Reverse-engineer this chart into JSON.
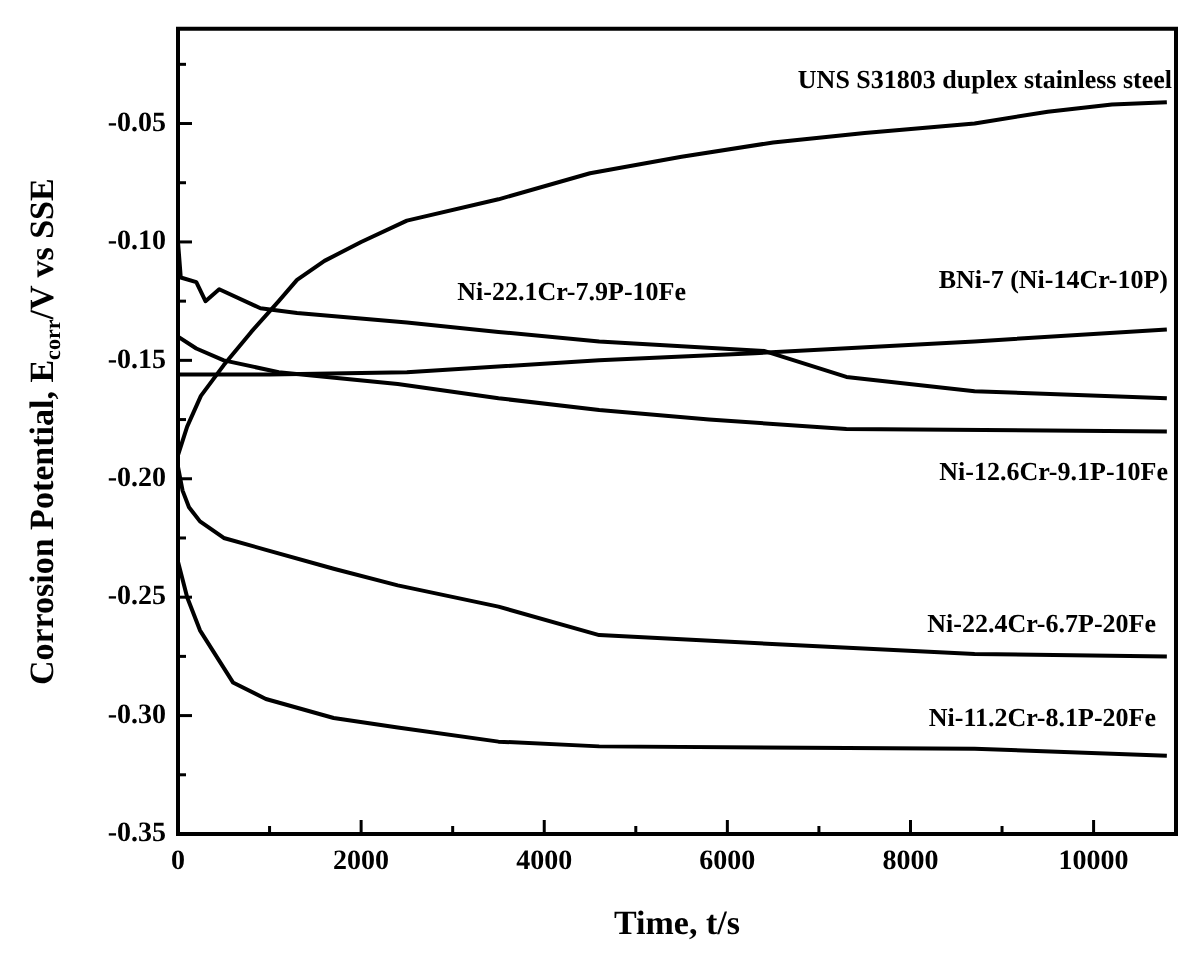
{
  "chart_data": {
    "type": "line",
    "xlabel": "Time, t/s",
    "ylabel": "Corrosion Potential, E$_{corr}$/V vs SSE",
    "xlim": [
      0,
      10900
    ],
    "ylim": [
      -0.35,
      -0.01
    ],
    "xticks": [
      0,
      {
        "value": 1000,
        "label": null
      },
      2000,
      {
        "value": 3000,
        "label": null
      },
      4000,
      {
        "value": 5000,
        "label": null
      },
      6000,
      {
        "value": 7000,
        "label": null
      },
      8000,
      {
        "value": 9000,
        "label": null
      },
      10000
    ],
    "yticks": [
      {
        "value": -0.35,
        "label": "-0.35"
      },
      {
        "value": -0.325,
        "label": null
      },
      {
        "value": -0.3,
        "label": "-0.30"
      },
      {
        "value": -0.275,
        "label": null
      },
      {
        "value": -0.25,
        "label": "-0.25"
      },
      {
        "value": -0.225,
        "label": null
      },
      {
        "value": -0.2,
        "label": "-0.20"
      },
      {
        "value": -0.175,
        "label": null
      },
      {
        "value": -0.15,
        "label": "-0.15"
      },
      {
        "value": -0.125,
        "label": null
      },
      {
        "value": -0.1,
        "label": "-0.10"
      },
      {
        "value": -0.075,
        "label": null
      },
      {
        "value": -0.05,
        "label": "-0.05"
      },
      {
        "value": -0.025,
        "label": null
      }
    ],
    "marker": "none",
    "line_style": "solid",
    "series": [
      {
        "color": "#000000",
        "x": [
          0,
          100,
          250,
          500,
          800,
          1100,
          1300,
          1600,
          2000,
          2500,
          3500,
          4500,
          5500,
          6500,
          7500,
          8700,
          9500,
          10200,
          10800
        ],
        "values": [
          -0.19,
          -0.178,
          -0.165,
          -0.152,
          -0.138,
          -0.125,
          -0.116,
          -0.108,
          -0.1,
          -0.091,
          -0.082,
          -0.071,
          -0.064,
          -0.058,
          -0.054,
          -0.05,
          -0.045,
          -0.042,
          -0.041
        ]
      },
      {
        "color": "#000000",
        "x": [
          0,
          30,
          200,
          300,
          450,
          900,
          1300,
          2500,
          3500,
          4600,
          5500,
          6400,
          7300,
          8700,
          10800
        ],
        "values": [
          -0.1,
          -0.115,
          -0.117,
          -0.125,
          -0.12,
          -0.128,
          -0.13,
          -0.134,
          -0.138,
          -0.142,
          -0.144,
          -0.146,
          -0.157,
          -0.163,
          -0.166
        ]
      },
      {
        "color": "#000000",
        "x": [
          0,
          1000,
          2500,
          4600,
          6300,
          8700,
          10800
        ],
        "values": [
          -0.156,
          -0.156,
          -0.155,
          -0.15,
          -0.147,
          -0.142,
          -0.137
        ]
      },
      {
        "color": "#000000",
        "x": [
          0,
          200,
          500,
          1100,
          2400,
          3500,
          4600,
          5800,
          7300,
          10800
        ],
        "values": [
          -0.14,
          -0.145,
          -0.15,
          -0.155,
          -0.16,
          -0.166,
          -0.171,
          -0.175,
          -0.179,
          -0.18
        ]
      },
      {
        "color": "#000000",
        "x": [
          0,
          50,
          120,
          240,
          500,
          960,
          1700,
          2400,
          3500,
          4600,
          6600,
          8700,
          10800
        ],
        "values": [
          -0.195,
          -0.205,
          -0.212,
          -0.218,
          -0.225,
          -0.23,
          -0.238,
          -0.245,
          -0.254,
          -0.266,
          -0.27,
          -0.274,
          -0.275
        ]
      },
      {
        "color": "#000000",
        "x": [
          0,
          100,
          240,
          600,
          960,
          1700,
          2400,
          3500,
          4600,
          8700,
          10800
        ],
        "values": [
          -0.235,
          -0.25,
          -0.264,
          -0.286,
          -0.293,
          -0.301,
          -0.305,
          -0.311,
          -0.313,
          -0.314,
          -0.317
        ]
      }
    ],
    "annotations": [
      "UNS S31803 duplex stainless steel",
      "Ni-22.1Cr-7.9P-10Fe",
      "BNi-7 (Ni-14Cr-10P)",
      "Ni-12.6Cr-9.1P-10Fe",
      "Ni-22.4Cr-6.7P-20Fe",
      "Ni-11.2Cr-8.1P-20Fe"
    ]
  }
}
